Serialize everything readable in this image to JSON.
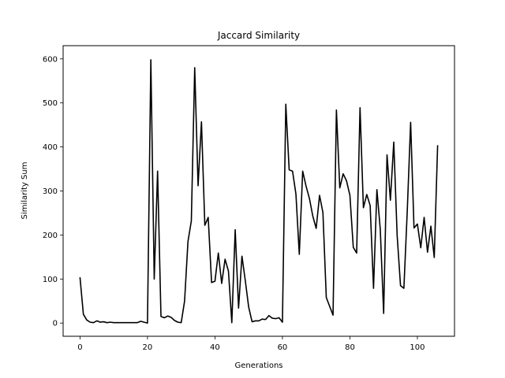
{
  "chart_data": {
    "type": "line",
    "title": "Jaccard Similarity",
    "xlabel": "Generations",
    "ylabel": "Similarity Sum",
    "xlim": [
      -5,
      111
    ],
    "ylim": [
      -30,
      630
    ],
    "xticks": [
      0,
      20,
      40,
      60,
      80,
      100
    ],
    "yticks": [
      0,
      100,
      200,
      300,
      400,
      500,
      600
    ],
    "grid": false,
    "legend": "none",
    "line_color": "#000000",
    "series": [
      {
        "x": [
          0,
          1,
          2,
          3,
          4,
          5,
          6,
          7,
          8,
          9,
          10,
          11,
          12,
          13,
          14,
          15,
          16,
          17,
          18,
          19,
          20,
          21,
          22,
          23,
          24,
          25,
          26,
          27,
          28,
          29,
          30,
          31,
          32,
          33,
          34,
          35,
          36,
          37,
          38,
          39,
          40,
          41,
          42,
          43,
          44,
          45,
          46,
          47,
          48,
          49,
          50,
          51,
          52,
          53,
          54,
          55,
          56,
          57,
          58,
          59,
          60,
          61,
          62,
          63,
          64,
          65,
          66,
          67,
          68,
          69,
          70,
          71,
          72,
          73,
          74,
          75,
          76,
          77,
          78,
          79,
          80,
          81,
          82,
          83,
          84,
          85,
          86,
          87,
          88,
          89,
          90,
          91,
          92,
          93,
          94,
          95,
          96,
          97,
          98,
          99,
          100,
          101,
          102,
          103,
          104,
          105,
          106
        ],
        "values": [
          104,
          20,
          7,
          2,
          1,
          5,
          2,
          3,
          1,
          2,
          1,
          1,
          1,
          1,
          1,
          1,
          1,
          1,
          4,
          2,
          0,
          598,
          100,
          345,
          15,
          12,
          16,
          13,
          6,
          2,
          1,
          50,
          185,
          232,
          580,
          312,
          457,
          222,
          240,
          92,
          95,
          159,
          90,
          145,
          118,
          1,
          212,
          34,
          152,
          96,
          36,
          3,
          5,
          5,
          9,
          8,
          17,
          11,
          10,
          12,
          2,
          497,
          348,
          345,
          293,
          156,
          345,
          311,
          283,
          243,
          215,
          290,
          251,
          58,
          38,
          18,
          484,
          307,
          339,
          323,
          290,
          172,
          159,
          489,
          262,
          292,
          267,
          79,
          303,
          213,
          22,
          382,
          279,
          411,
          199,
          85,
          79,
          255,
          456,
          216,
          225,
          171,
          240,
          161,
          220,
          149,
          404
        ]
      }
    ]
  }
}
